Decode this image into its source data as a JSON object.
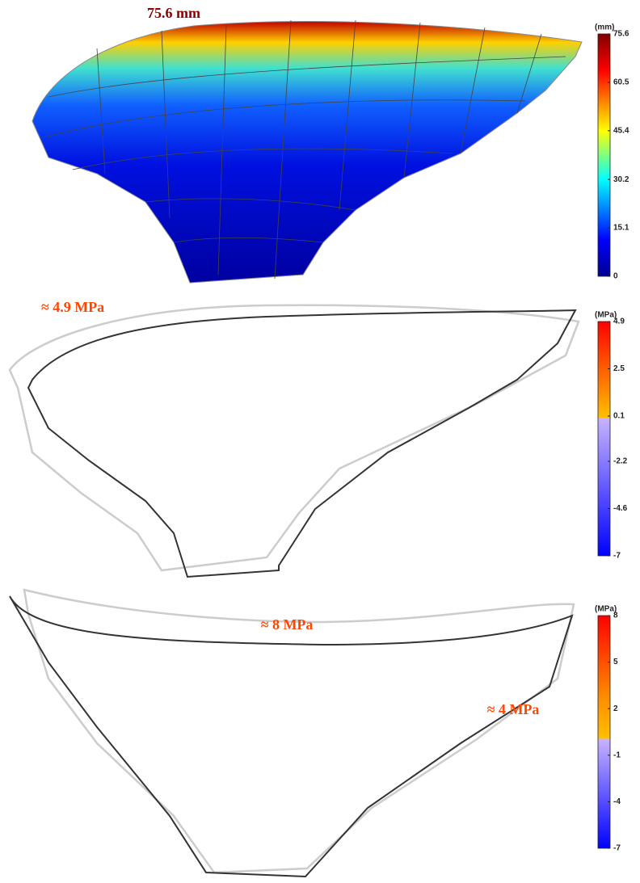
{
  "panels": [
    {
      "annotation": "75.6 mm",
      "colorbar": {
        "unit": "(mm)",
        "lim": [
          0,
          75.6
        ],
        "ticks": [
          0,
          15.1,
          30.2,
          45.4,
          60.5,
          75.6
        ]
      }
    },
    {
      "annotation": "≈ 4.9 MPa",
      "colorbar": {
        "unit": "(MPa)",
        "lim": [
          -7,
          4.9
        ],
        "ticks": [
          4.9,
          2.5,
          0.1,
          -2.2,
          -4.6,
          -7
        ]
      }
    },
    {
      "annotations": [
        "≈ 8 MPa",
        "≈ 4 MPa"
      ],
      "colorbar": {
        "unit": "(MPa)",
        "lim": [
          -7,
          8
        ],
        "ticks": [
          8,
          5,
          2,
          -1,
          -4,
          -7
        ]
      }
    }
  ]
}
